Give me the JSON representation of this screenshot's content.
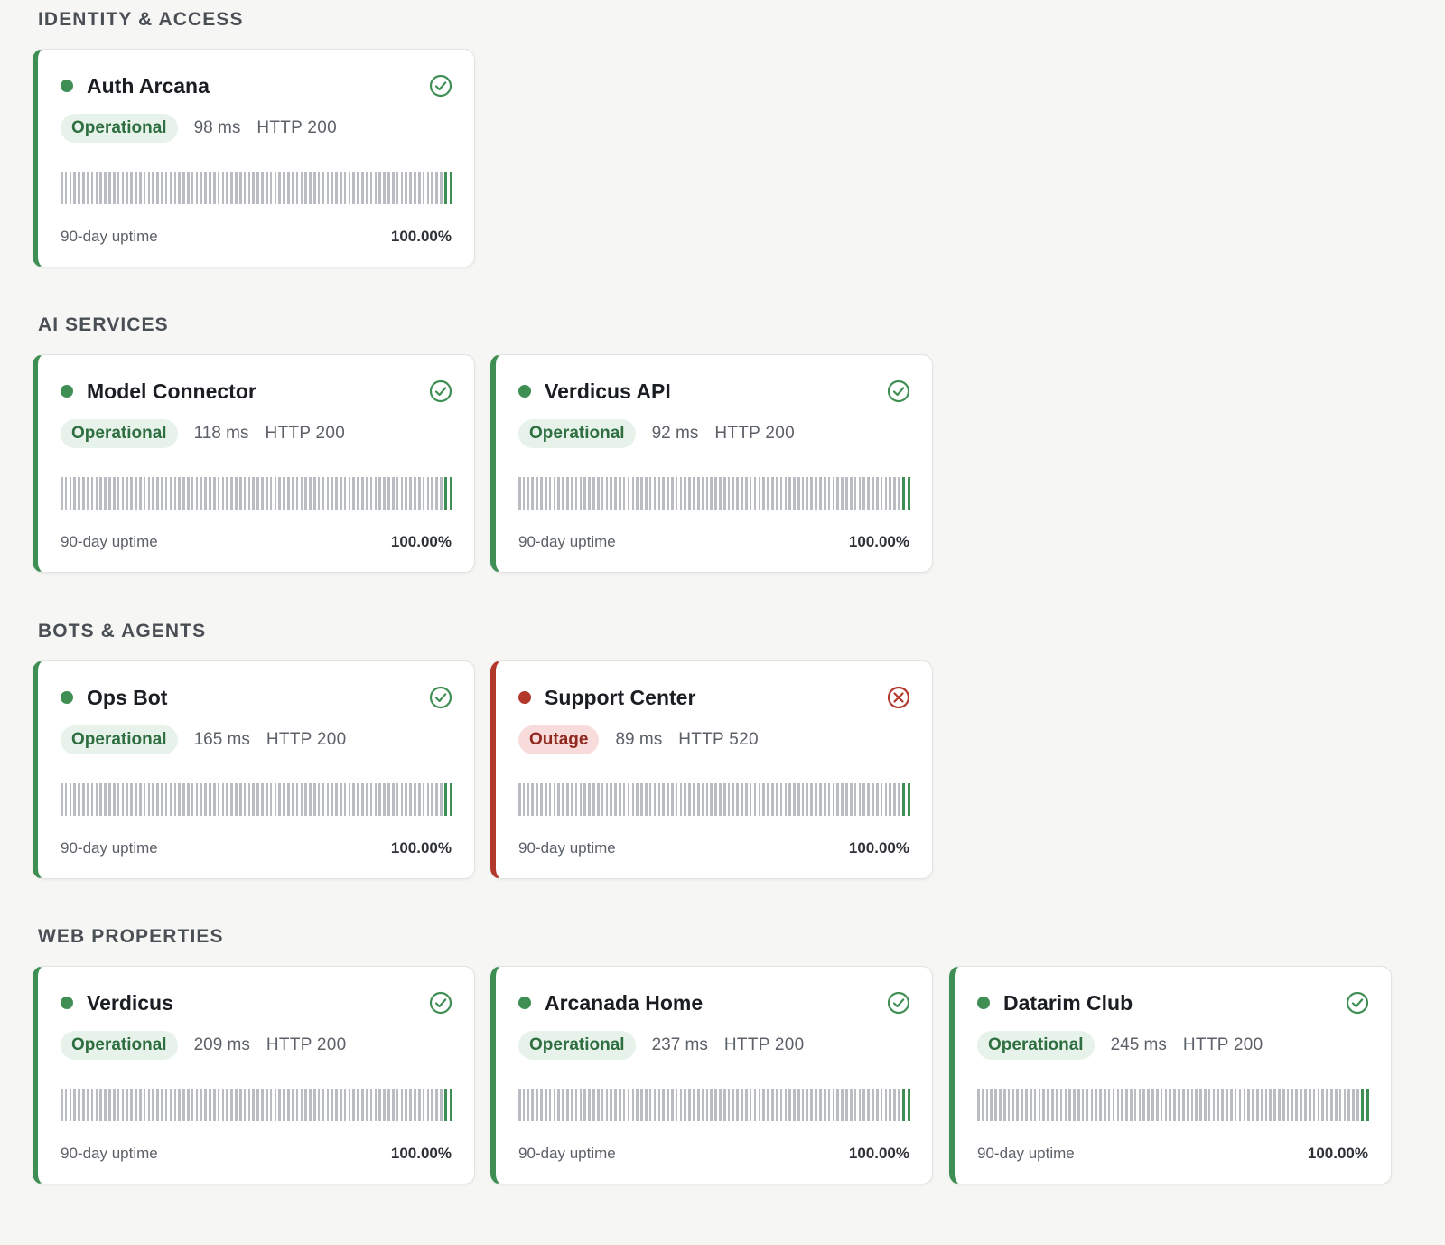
{
  "colors": {
    "operational": "#3f8f55",
    "outage": "#b3382c",
    "bar_idle": "#b9bcc1",
    "background": "#f6f6f4"
  },
  "bars_total": 90,
  "sections": [
    {
      "title": "IDENTITY & ACCESS",
      "cards": [
        {
          "name": "Auth Arcana",
          "status": "Operational",
          "latency": "98 ms",
          "http": "HTTP 200",
          "uptime_label": "90-day uptime",
          "uptime": "100.00%",
          "state": "ok",
          "icon": "check-circle-icon"
        }
      ]
    },
    {
      "title": "AI SERVICES",
      "cards": [
        {
          "name": "Model Connector",
          "status": "Operational",
          "latency": "118 ms",
          "http": "HTTP 200",
          "uptime_label": "90-day uptime",
          "uptime": "100.00%",
          "state": "ok",
          "icon": "check-circle-icon"
        },
        {
          "name": "Verdicus API",
          "status": "Operational",
          "latency": "92 ms",
          "http": "HTTP 200",
          "uptime_label": "90-day uptime",
          "uptime": "100.00%",
          "state": "ok",
          "icon": "check-circle-icon"
        }
      ]
    },
    {
      "title": "BOTS & AGENTS",
      "cards": [
        {
          "name": "Ops Bot",
          "status": "Operational",
          "latency": "165 ms",
          "http": "HTTP 200",
          "uptime_label": "90-day uptime",
          "uptime": "100.00%",
          "state": "ok",
          "icon": "check-circle-icon"
        },
        {
          "name": "Support Center",
          "status": "Outage",
          "latency": "89 ms",
          "http": "HTTP 520",
          "uptime_label": "90-day uptime",
          "uptime": "100.00%",
          "state": "outage",
          "icon": "x-circle-icon"
        }
      ]
    },
    {
      "title": "WEB PROPERTIES",
      "cards": [
        {
          "name": "Verdicus",
          "status": "Operational",
          "latency": "209 ms",
          "http": "HTTP 200",
          "uptime_label": "90-day uptime",
          "uptime": "100.00%",
          "state": "ok",
          "icon": "check-circle-icon"
        },
        {
          "name": "Arcanada Home",
          "status": "Operational",
          "latency": "237 ms",
          "http": "HTTP 200",
          "uptime_label": "90-day uptime",
          "uptime": "100.00%",
          "state": "ok",
          "icon": "check-circle-icon"
        },
        {
          "name": "Datarim Club",
          "status": "Operational",
          "latency": "245 ms",
          "http": "HTTP 200",
          "uptime_label": "90-day uptime",
          "uptime": "100.00%",
          "state": "ok",
          "icon": "check-circle-icon"
        }
      ]
    }
  ]
}
